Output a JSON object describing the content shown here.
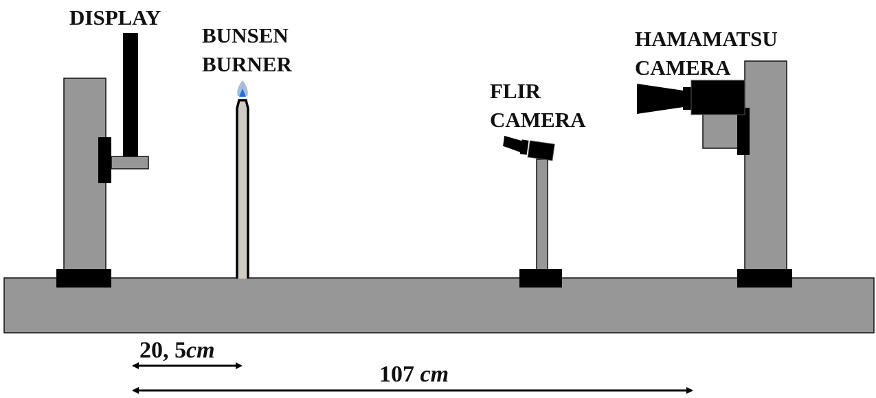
{
  "labels": {
    "display": "DISPLAY",
    "bunsen_line1": "BUNSEN",
    "bunsen_line2": "BURNER",
    "flir_line1": "FLIR",
    "flir_line2": "CAMERA",
    "hamamatsu_line1": "HAMAMATSU",
    "hamamatsu_line2": "CAMERA"
  },
  "dimensions": {
    "short": {
      "number": "20, 5",
      "unit": "cm"
    },
    "long": {
      "number": "107 ",
      "unit": "cm"
    }
  },
  "colors": {
    "structure_gray": "#979797",
    "mount_black": "#000000",
    "flame_outer": "#a9bcd8",
    "flame_inner": "#1f6fe6",
    "burner_tube": "#d0ccc4"
  }
}
